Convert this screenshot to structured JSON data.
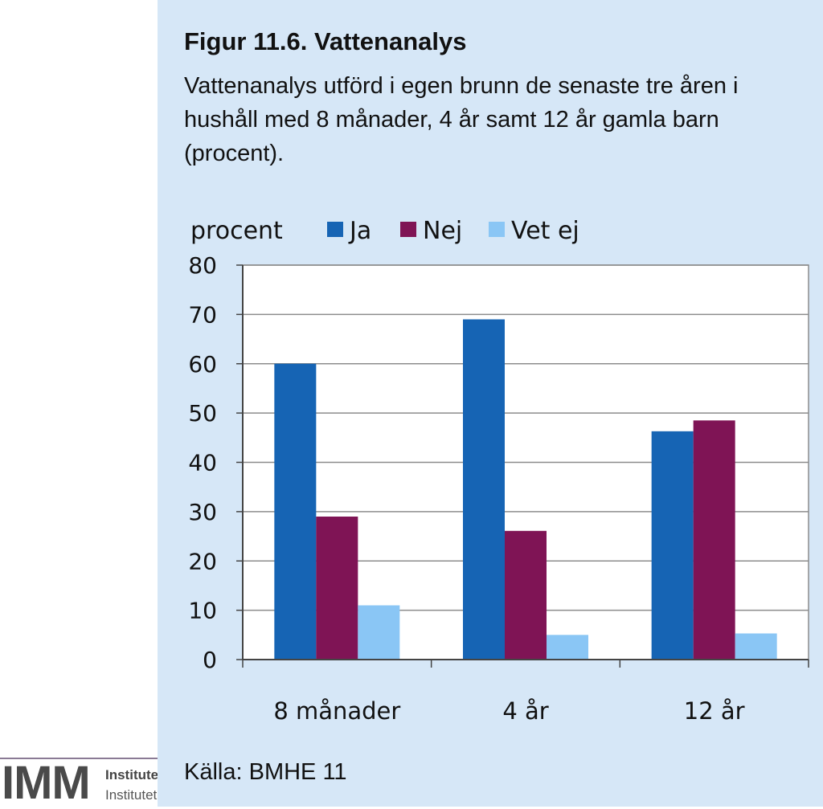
{
  "logo": {
    "text": "IMM",
    "line1": "Institutet",
    "line2": "Institutet för Miljömedicin"
  },
  "figure": {
    "title": "Figur 11.6. Vattenanalys",
    "subtitle": "Vattenanalys utförd i egen brunn de senaste tre åren i hushåll med 8 månader, 4 år samt 12 år gamla barn (procent).",
    "source": "Källa: BMHE 11"
  },
  "chart_data": {
    "type": "bar",
    "ylabel": "procent",
    "categories": [
      "8 månader",
      "4 år",
      "12 år"
    ],
    "series": [
      {
        "name": "Ja",
        "color": "#1664b4",
        "values": [
          60,
          69,
          46.3
        ]
      },
      {
        "name": "Nej",
        "color": "#7f1455",
        "values": [
          29,
          26.1,
          48.5
        ]
      },
      {
        "name": "Vet ej",
        "color": "#8ac6f5",
        "values": [
          11,
          5,
          5.3
        ]
      }
    ],
    "ylim": [
      0,
      80
    ],
    "yticks": [
      0,
      10,
      20,
      30,
      40,
      50,
      60,
      70,
      80
    ],
    "grid": true,
    "legend": "top"
  }
}
